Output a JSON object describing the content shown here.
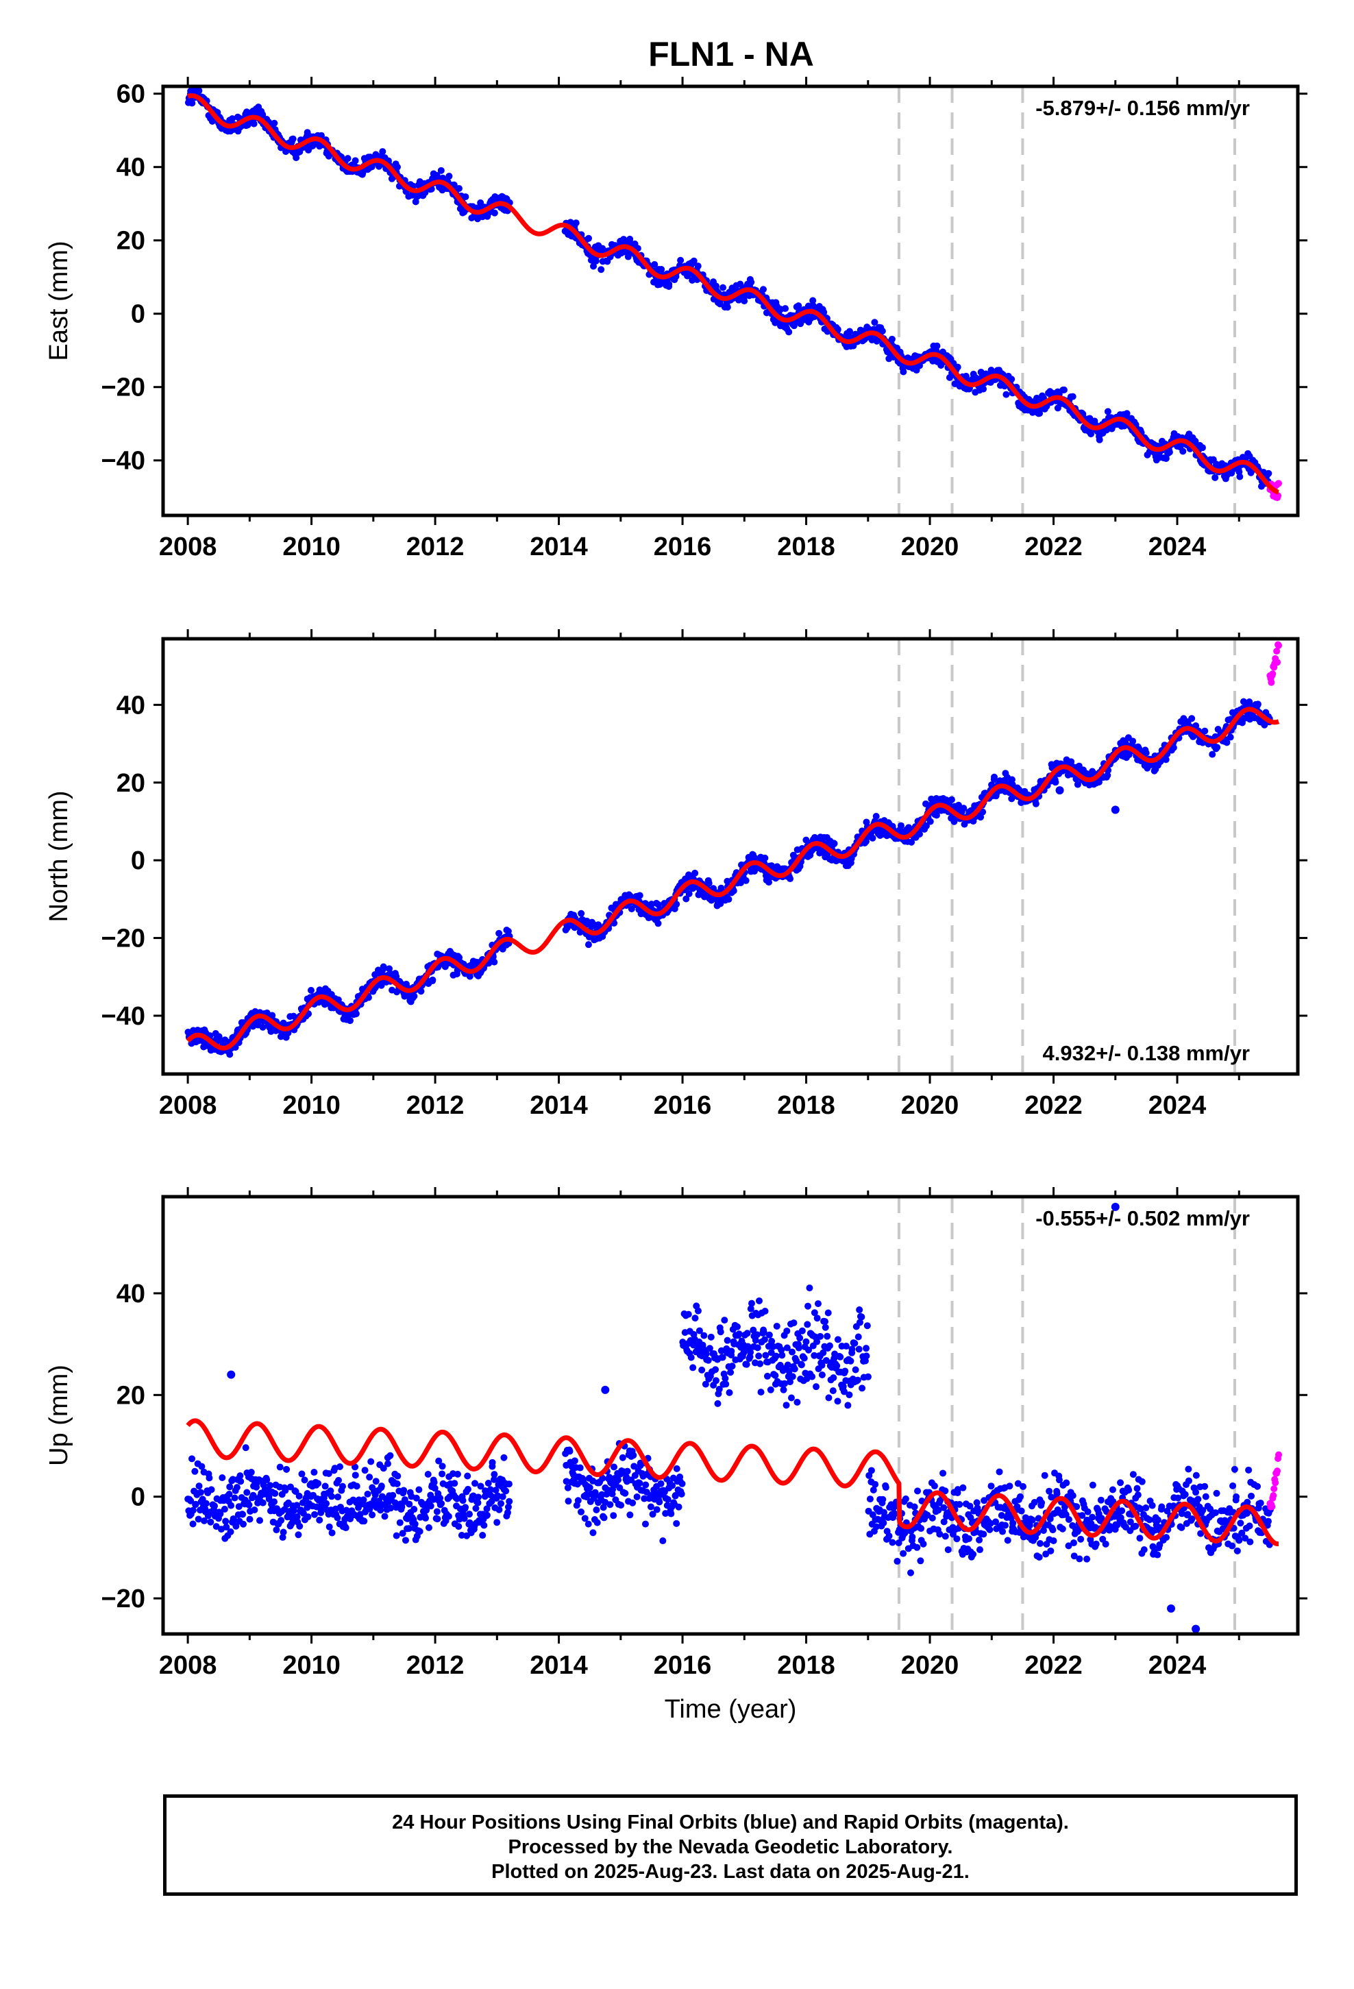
{
  "figure": {
    "title": "FLN1 - NA",
    "footer": [
      "24 Hour Positions Using Final Orbits (blue) and Rapid Orbits (magenta).",
      "Processed by the Nevada Geodetic Laboratory.",
      "Plotted on 2025-Aug-23. Last data on 2025-Aug-21."
    ]
  },
  "colors": {
    "final_orbits": "#0000ff",
    "rapid_orbits": "#ff00ff",
    "model": "#ff0000",
    "event_lines": "#c8c8c8"
  },
  "chart_data": [
    {
      "type": "scatter",
      "panel": "east",
      "title": "FLN1 - NA",
      "xlabel": "",
      "ylabel": "East (mm)",
      "xlim": [
        2007.6,
        2025.95
      ],
      "ylim": [
        -55,
        62
      ],
      "xticks": [
        2008,
        2010,
        2012,
        2014,
        2016,
        2018,
        2020,
        2022,
        2024
      ],
      "yticks": [
        -40,
        -20,
        0,
        20,
        40,
        60
      ],
      "rate_text": "-5.879+/- 0.156 mm/yr",
      "rate_position": "top-right",
      "velocity_mm_per_yr": -5.879,
      "intercept_at_2008": 57.5,
      "seasonal_amplitude_mm": 2.5,
      "event_lines": [
        2019.5,
        2020.36,
        2021.5,
        2024.93
      ],
      "series": [
        {
          "name": "Final Orbits",
          "color": "#0000ff",
          "coverage": [
            [
              2008.0,
              2013.2
            ],
            [
              2014.1,
              2025.5
            ]
          ],
          "scatter_mm": 1.8,
          "outliers": []
        },
        {
          "name": "Rapid Orbits",
          "color": "#ff00ff",
          "coverage": [
            [
              2025.5,
              2025.64
            ]
          ],
          "scatter_mm": 1.5
        }
      ],
      "model": {
        "name": "Model",
        "color": "#ff0000",
        "x_range": [
          2008.0,
          2025.64
        ],
        "offsets": []
      }
    },
    {
      "type": "scatter",
      "panel": "north",
      "title": "",
      "xlabel": "",
      "ylabel": "North (mm)",
      "xlim": [
        2007.6,
        2025.95
      ],
      "ylim": [
        -55,
        57
      ],
      "xticks": [
        2008,
        2010,
        2012,
        2014,
        2016,
        2018,
        2020,
        2022,
        2024
      ],
      "yticks": [
        -40,
        -20,
        0,
        20,
        40
      ],
      "rate_text": "4.932+/- 0.138 mm/yr",
      "rate_position": "bottom-right",
      "velocity_mm_per_yr": 4.932,
      "intercept_at_2008": -48.5,
      "seasonal_amplitude_mm": 2.8,
      "event_lines": [
        2019.5,
        2020.36,
        2021.5,
        2024.93
      ],
      "series": [
        {
          "name": "Final Orbits",
          "color": "#0000ff",
          "coverage": [
            [
              2008.0,
              2013.2
            ],
            [
              2014.1,
              2025.5
            ]
          ],
          "scatter_mm": 1.8,
          "outliers": [
            [
              2022.1,
              18
            ],
            [
              2023.0,
              13
            ]
          ]
        },
        {
          "name": "Rapid Orbits",
          "color": "#ff00ff",
          "coverage": [
            [
              2025.5,
              2025.64
            ]
          ],
          "scatter_mm": 2.5,
          "drift": [
            46,
            54
          ]
        }
      ],
      "model": {
        "name": "Model",
        "color": "#ff0000",
        "x_range": [
          2008.0,
          2025.64
        ],
        "offsets": []
      }
    },
    {
      "type": "scatter",
      "panel": "up",
      "title": "",
      "xlabel": "Time (year)",
      "ylabel": "Up (mm)",
      "xlim": [
        2007.6,
        2025.95
      ],
      "ylim": [
        -27,
        59
      ],
      "xticks": [
        2008,
        2010,
        2012,
        2014,
        2016,
        2018,
        2020,
        2022,
        2024
      ],
      "yticks": [
        -20,
        0,
        20,
        40
      ],
      "rate_text": "-0.555+/- 0.502 mm/yr",
      "rate_position": "top-right",
      "velocity_mm_per_yr": -0.555,
      "intercept_at_2008": 11.5,
      "seasonal_amplitude_mm": 3.5,
      "event_lines": [
        2019.5,
        2020.36,
        2021.5,
        2024.93
      ],
      "series": [
        {
          "name": "Final Orbits",
          "color": "#0000ff",
          "segments": [
            {
              "range": [
                2008.0,
                2013.2
              ],
              "level": -1,
              "scatter_mm": 4.5
            },
            {
              "range": [
                2014.1,
                2016.0
              ],
              "level": 2,
              "scatter_mm": 4.5
            },
            {
              "range": [
                2016.0,
                2019.0
              ],
              "level": 28,
              "scatter_mm": 5.5
            },
            {
              "range": [
                2019.0,
                2025.5
              ],
              "level": -4,
              "scatter_mm": 4.5
            }
          ],
          "outliers": [
            [
              2008.7,
              24
            ],
            [
              2014.75,
              21
            ],
            [
              2023.0,
              57
            ],
            [
              2023.9,
              -22
            ],
            [
              2024.3,
              -26
            ]
          ]
        },
        {
          "name": "Rapid Orbits",
          "color": "#ff00ff",
          "coverage": [
            [
              2025.5,
              2025.64
            ]
          ],
          "scatter_mm": 2.0,
          "drift": [
            -3,
            7
          ]
        }
      ],
      "model": {
        "name": "Model",
        "color": "#ff0000",
        "x_range": [
          2008.0,
          2025.64
        ],
        "offsets": [
          [
            2019.5,
            -7.5
          ]
        ]
      }
    }
  ]
}
